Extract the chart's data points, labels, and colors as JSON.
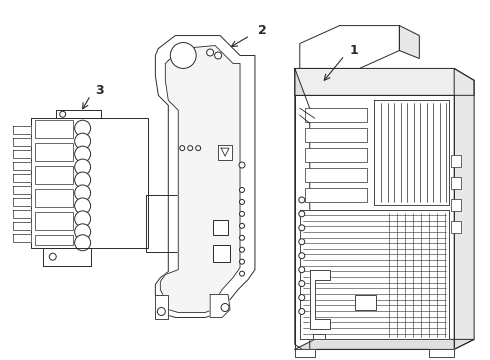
{
  "bg_color": "#ffffff",
  "line_color": "#2a2a2a",
  "lw": 0.7,
  "fig_width": 4.9,
  "fig_height": 3.6,
  "dpi": 100
}
